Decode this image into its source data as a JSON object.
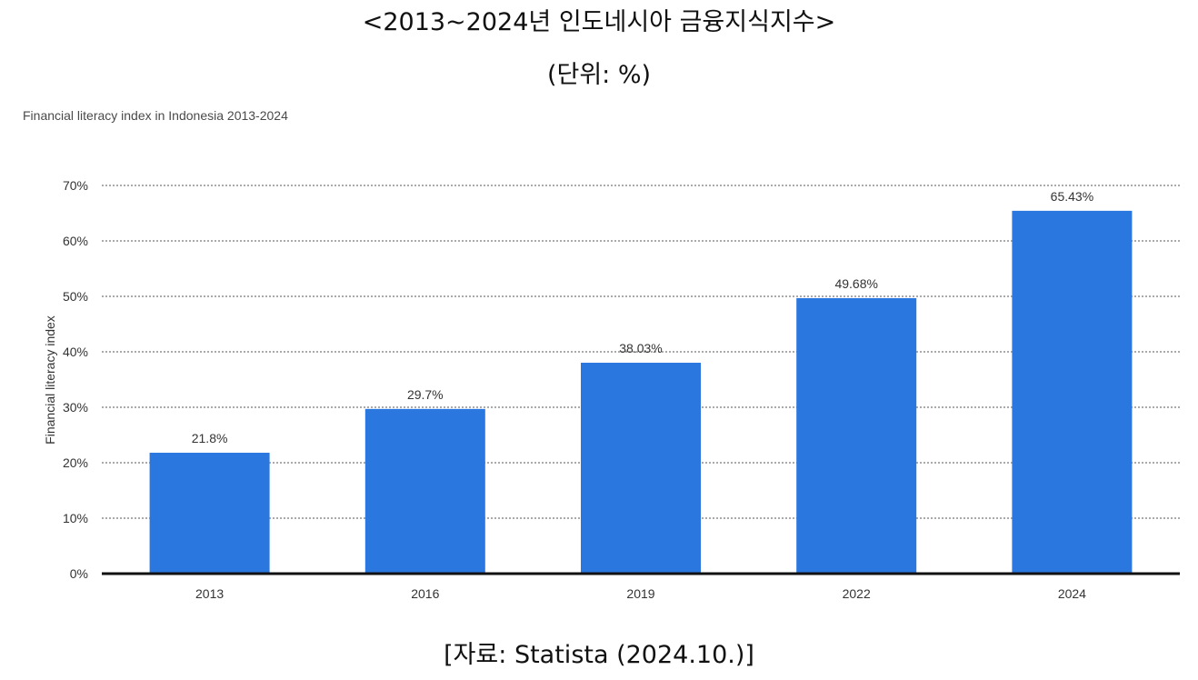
{
  "header": {
    "title": "<2013~2024년 인도네시아 금융지식지수>",
    "unit": "(단위: %)",
    "source": "[자료: Statista (2024.10.)]"
  },
  "chart_data": {
    "type": "bar",
    "title": "Financial literacy index in Indonesia 2013-2024",
    "xlabel": "",
    "ylabel": "Financial literacy index",
    "categories": [
      "2013",
      "2016",
      "2019",
      "2022",
      "2024"
    ],
    "values": [
      21.8,
      29.7,
      38.03,
      49.68,
      65.43
    ],
    "value_labels": [
      "21.8%",
      "29.7%",
      "38.03%",
      "49.68%",
      "65.43%"
    ],
    "ylim": [
      0,
      70
    ],
    "yticks": [
      0,
      10,
      20,
      30,
      40,
      50,
      60,
      70
    ],
    "ytick_labels": [
      "0%",
      "10%",
      "20%",
      "30%",
      "40%",
      "50%",
      "60%",
      "70%"
    ],
    "grid": true,
    "bar_color": "#2A77DF"
  }
}
